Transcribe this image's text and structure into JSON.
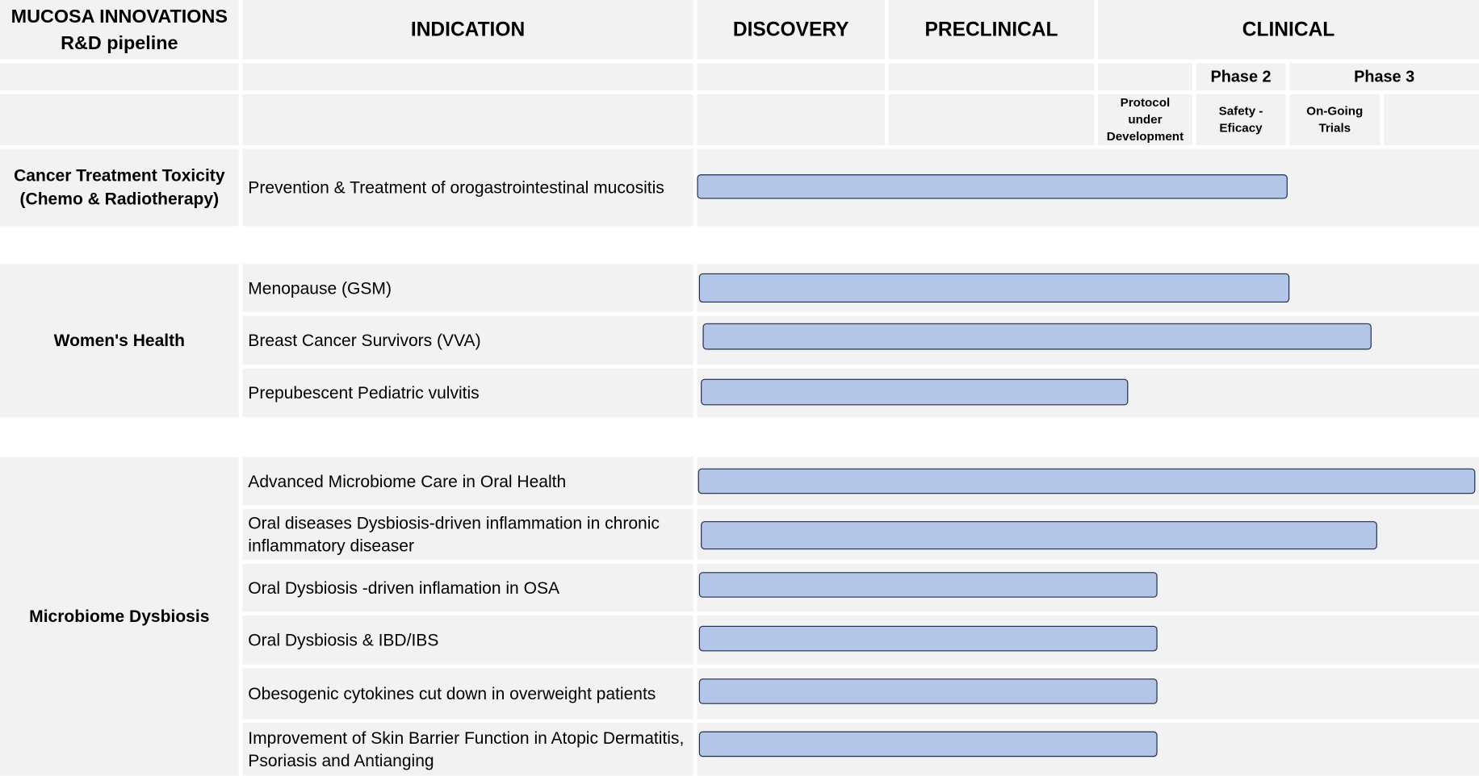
{
  "header": {
    "title_line1": "MUCOSA INNOVATIONS",
    "title_line2": "R&D pipeline",
    "indication": "INDICATION",
    "discovery": "DISCOVERY",
    "preclinical": "PRECLINICAL",
    "clinical": "CLINICAL",
    "phase2": "Phase 2",
    "phase3": "Phase 3",
    "protocol": "Protocol under Development",
    "safety": "Safety - Eficacy",
    "ongoing": "On-Going Trials"
  },
  "categories": [
    {
      "name_line1": "Cancer Treatment Toxicity",
      "name_line2": "(Chemo & Radiotherapy)"
    },
    {
      "name": "Women's Health"
    },
    {
      "name": "Microbiome Dysbiosis"
    }
  ],
  "indications": [
    {
      "label": "Prevention & Treatment of orogastrointestinal mucositis",
      "progress": 0.76
    },
    {
      "label": "Menopause (GSM)",
      "progress": 0.76
    },
    {
      "label": "Breast Cancer Survivors  (VVA)",
      "progress": 0.86
    },
    {
      "label": "Prepubescent Pediatric vulvitis",
      "progress": 0.55
    },
    {
      "label": "Advanced Microbiome Care in Oral Health",
      "progress": 1.0
    },
    {
      "label": "Oral diseases Dysbiosis-driven inflammation in chronic inflammatory diseaser",
      "progress": 0.87
    },
    {
      "label": "Oral Dysbiosis -driven inflamation in OSA",
      "progress": 0.59
    },
    {
      "label": "Oral Dysbiosis & IBD/IBS",
      "progress": 0.59
    },
    {
      "label": "Obesogenic cytokines cut down in overweight patients",
      "progress": 0.59
    },
    {
      "label": "Improvement of Skin Barrier Function in Atopic Dermatitis, Psoriasis and Antianging",
      "progress": 0.59
    }
  ],
  "colors": {
    "bar_fill": "#b4c6e7",
    "bar_border": "#1f2a4a",
    "cell_bg": "#f2f2f2"
  }
}
